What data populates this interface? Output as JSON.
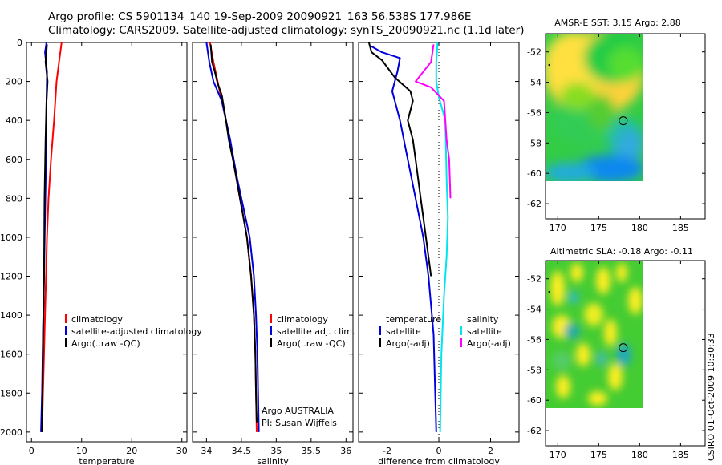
{
  "title_line1": "Argo profile: CS 5901134_140 19-Sep-2009 20090921_163 56.538S 177.986E",
  "title_line2": "Climatology: CARS2009. Satellite-adjusted climatology: synTS_20090921.nc (1.1d later)",
  "credit": "CSIRO 01-Oct-2009 10:30:33",
  "colors": {
    "clim": "#ff0000",
    "sat": "#0000dd",
    "argo": "#000000",
    "cyan": "#00e5ee",
    "magenta": "#ff00ff"
  },
  "chart_data": [
    {
      "type": "line",
      "xlabel": "temperature",
      "xlim": [
        -1,
        31
      ],
      "xticks": [
        0,
        10,
        20,
        30
      ],
      "ylim": [
        2050,
        0
      ],
      "yticks": [
        0,
        200,
        400,
        600,
        800,
        1000,
        1200,
        1400,
        1600,
        1800,
        2000
      ],
      "legend": [
        "climatology",
        "satellite-adjusted climatology",
        "Argo(..raw -QC)"
      ],
      "series": [
        {
          "name": "climatology",
          "color": "clim",
          "points": [
            [
              6.0,
              0
            ],
            [
              5.5,
              100
            ],
            [
              5.0,
              200
            ],
            [
              4.5,
              400
            ],
            [
              3.9,
              600
            ],
            [
              3.4,
              800
            ],
            [
              3.1,
              1000
            ],
            [
              2.9,
              1200
            ],
            [
              2.7,
              1400
            ],
            [
              2.5,
              1600
            ],
            [
              2.3,
              1800
            ],
            [
              2.1,
              2000
            ]
          ]
        },
        {
          "name": "satellite-adjusted climatology",
          "color": "sat",
          "points": [
            [
              3.0,
              0
            ],
            [
              2.7,
              50
            ],
            [
              3.1,
              150
            ],
            [
              3.0,
              300
            ],
            [
              2.9,
              600
            ],
            [
              2.7,
              900
            ],
            [
              2.5,
              1200
            ],
            [
              2.3,
              1500
            ],
            [
              2.1,
              1800
            ],
            [
              1.9,
              2000
            ]
          ]
        },
        {
          "name": "Argo(..raw -QC)",
          "color": "argo",
          "points": [
            [
              3.1,
              10
            ],
            [
              2.8,
              100
            ],
            [
              3.2,
              200
            ],
            [
              3.0,
              300
            ],
            [
              2.8,
              500
            ],
            [
              2.6,
              800
            ],
            [
              2.5,
              1200
            ],
            [
              2.3,
              1500
            ],
            [
              2.2,
              1800
            ],
            [
              2.1,
              2000
            ]
          ]
        }
      ]
    },
    {
      "type": "line",
      "xlabel": "salinity",
      "xlim": [
        33.8,
        36.1
      ],
      "xticks": [
        34,
        34.5,
        35,
        35.5,
        36
      ],
      "ylim": [
        2050,
        0
      ],
      "yticks": [
        0,
        200,
        400,
        600,
        800,
        1000,
        1200,
        1400,
        1600,
        1800,
        2000
      ],
      "legend": [
        "climatology",
        "satellite adj. clim.",
        "Argo(..raw -QC)"
      ],
      "annotation": [
        "Argo AUSTRALIA",
        "PI: Susan Wijffels"
      ],
      "series": [
        {
          "name": "climatology",
          "color": "clim",
          "points": [
            [
              34.05,
              0
            ],
            [
              34.1,
              100
            ],
            [
              34.16,
              200
            ],
            [
              34.22,
              300
            ],
            [
              34.28,
              400
            ],
            [
              34.33,
              500
            ],
            [
              34.38,
              600
            ],
            [
              34.43,
              700
            ],
            [
              34.48,
              800
            ],
            [
              34.53,
              900
            ],
            [
              34.58,
              1000
            ],
            [
              34.64,
              1200
            ],
            [
              34.68,
              1400
            ],
            [
              34.7,
              1600
            ],
            [
              34.71,
              1800
            ],
            [
              34.72,
              2000
            ]
          ]
        },
        {
          "name": "satellite adj. clim.",
          "color": "sat",
          "points": [
            [
              34.0,
              0
            ],
            [
              34.04,
              100
            ],
            [
              34.1,
              200
            ],
            [
              34.22,
              300
            ],
            [
              34.28,
              400
            ],
            [
              34.34,
              500
            ],
            [
              34.39,
              600
            ],
            [
              34.44,
              700
            ],
            [
              34.5,
              800
            ],
            [
              34.56,
              900
            ],
            [
              34.62,
              1000
            ],
            [
              34.68,
              1200
            ],
            [
              34.71,
              1400
            ],
            [
              34.73,
              1600
            ],
            [
              34.74,
              1800
            ],
            [
              34.75,
              2000
            ]
          ]
        },
        {
          "name": "Argo(..raw -QC)",
          "color": "argo",
          "points": [
            [
              34.06,
              10
            ],
            [
              34.08,
              100
            ],
            [
              34.12,
              150
            ],
            [
              34.16,
              210
            ],
            [
              34.22,
              270
            ],
            [
              34.27,
              380
            ],
            [
              34.32,
              500
            ],
            [
              34.38,
              600
            ],
            [
              34.43,
              700
            ],
            [
              34.48,
              800
            ],
            [
              34.53,
              900
            ],
            [
              34.58,
              1000
            ],
            [
              34.64,
              1200
            ],
            [
              34.68,
              1400
            ],
            [
              34.7,
              1600
            ],
            [
              34.71,
              1800
            ],
            [
              34.72,
              1950
            ]
          ]
        }
      ]
    },
    {
      "type": "line",
      "xlabel": "difference from climatology",
      "xlim": [
        -3.1,
        3.1
      ],
      "xticks": [
        -2,
        0,
        2
      ],
      "ylim": [
        2050,
        0
      ],
      "yticks": [
        0,
        200,
        400,
        600,
        800,
        1000,
        1200,
        1400,
        1600,
        1800,
        2000
      ],
      "legend_left": {
        "header": "temperature",
        "items": [
          "satellite",
          "Argo(-adj)"
        ]
      },
      "legend_right": {
        "header": "salinity",
        "items": [
          "satellite",
          "Argo(-adj)"
        ]
      },
      "series": [
        {
          "name": "temperature satellite",
          "color": "sat",
          "points": [
            [
              -2.6,
              20
            ],
            [
              -2.2,
              50
            ],
            [
              -1.5,
              80
            ],
            [
              -1.6,
              150
            ],
            [
              -1.8,
              250
            ],
            [
              -1.5,
              400
            ],
            [
              -1.2,
              600
            ],
            [
              -0.9,
              800
            ],
            [
              -0.6,
              1000
            ],
            [
              -0.4,
              1200
            ],
            [
              -0.2,
              1500
            ],
            [
              -0.1,
              2000
            ]
          ]
        },
        {
          "name": "temperature Argo(-adj)",
          "color": "argo",
          "points": [
            [
              -2.7,
              0
            ],
            [
              -2.6,
              50
            ],
            [
              -2.2,
              90
            ],
            [
              -1.7,
              180
            ],
            [
              -1.1,
              250
            ],
            [
              -1.0,
              300
            ],
            [
              -1.2,
              400
            ],
            [
              -1.0,
              500
            ],
            [
              -0.9,
              600
            ],
            [
              -0.7,
              800
            ],
            [
              -0.5,
              1000
            ],
            [
              -0.3,
              1200
            ]
          ]
        },
        {
          "name": "salinity satellite",
          "color": "cyan",
          "points": [
            [
              -0.05,
              0
            ],
            [
              -0.1,
              100
            ],
            [
              -0.1,
              200
            ],
            [
              0.0,
              280
            ],
            [
              0.25,
              400
            ],
            [
              0.3,
              700
            ],
            [
              0.35,
              900
            ],
            [
              0.3,
              1100
            ],
            [
              0.2,
              1300
            ],
            [
              0.1,
              1600
            ],
            [
              0.05,
              2000
            ]
          ]
        },
        {
          "name": "salinity Argo(-adj)",
          "color": "magenta",
          "points": [
            [
              -0.2,
              10
            ],
            [
              -0.3,
              100
            ],
            [
              -0.9,
              200
            ],
            [
              -0.3,
              230
            ],
            [
              0.2,
              300
            ],
            [
              0.3,
              500
            ],
            [
              0.4,
              600
            ],
            [
              0.45,
              800
            ]
          ]
        }
      ]
    }
  ],
  "maps": [
    {
      "title": "AMSR-E SST: 3.15 Argo: 2.88",
      "type": "heatmap",
      "xlim": [
        168.5,
        188
      ],
      "xticks": [
        170,
        175,
        180,
        185
      ],
      "ylim": [
        -63,
        -50.8
      ],
      "yticks": [
        -52,
        -54,
        -56,
        -58,
        -60,
        -62
      ],
      "float_lon": 177.986,
      "float_lat": -56.538
    },
    {
      "title": "Altimetric SLA: -0.18 Argo: -0.11",
      "type": "heatmap",
      "xlim": [
        168.5,
        188
      ],
      "xticks": [
        170,
        175,
        180,
        185
      ],
      "ylim": [
        -63,
        -50.8
      ],
      "yticks": [
        -52,
        -54,
        -56,
        -58,
        -60,
        -62
      ],
      "float_lon": 177.986,
      "float_lat": -56.538
    }
  ]
}
